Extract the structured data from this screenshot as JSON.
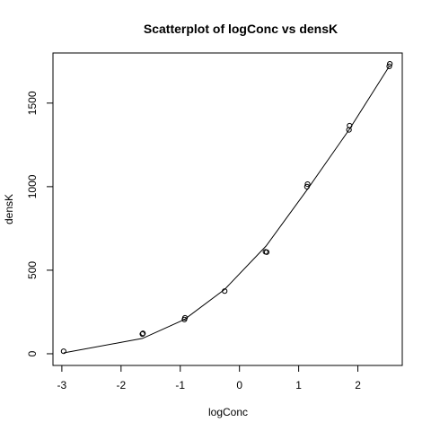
{
  "chart_data": {
    "type": "scatter",
    "title": "Scatterplot of logConc vs densK",
    "xlabel": "logConc",
    "ylabel": "densK",
    "xlim": [
      -3.15,
      2.75
    ],
    "ylim": [
      -70,
      1800
    ],
    "x_ticks": [
      -3,
      -2,
      -1,
      0,
      1,
      2
    ],
    "y_ticks": [
      0,
      500,
      1000,
      1500
    ],
    "grid": false,
    "legend": "none",
    "points": [
      {
        "x": -2.97,
        "y": 15
      },
      {
        "x": -1.64,
        "y": 118
      },
      {
        "x": -1.63,
        "y": 122
      },
      {
        "x": -0.93,
        "y": 205
      },
      {
        "x": -0.92,
        "y": 215
      },
      {
        "x": -0.25,
        "y": 375
      },
      {
        "x": 0.44,
        "y": 610
      },
      {
        "x": 0.46,
        "y": 608
      },
      {
        "x": 1.14,
        "y": 1000
      },
      {
        "x": 1.15,
        "y": 1015
      },
      {
        "x": 1.85,
        "y": 1340
      },
      {
        "x": 1.86,
        "y": 1365
      },
      {
        "x": 2.53,
        "y": 1720
      },
      {
        "x": 2.54,
        "y": 1735
      }
    ],
    "fit_line": [
      {
        "x": -2.97,
        "y": 5
      },
      {
        "x": -1.64,
        "y": 92
      },
      {
        "x": -0.93,
        "y": 205
      },
      {
        "x": -0.25,
        "y": 385
      },
      {
        "x": 0.45,
        "y": 645
      },
      {
        "x": 1.15,
        "y": 985
      },
      {
        "x": 1.85,
        "y": 1340
      },
      {
        "x": 2.53,
        "y": 1720
      }
    ]
  }
}
